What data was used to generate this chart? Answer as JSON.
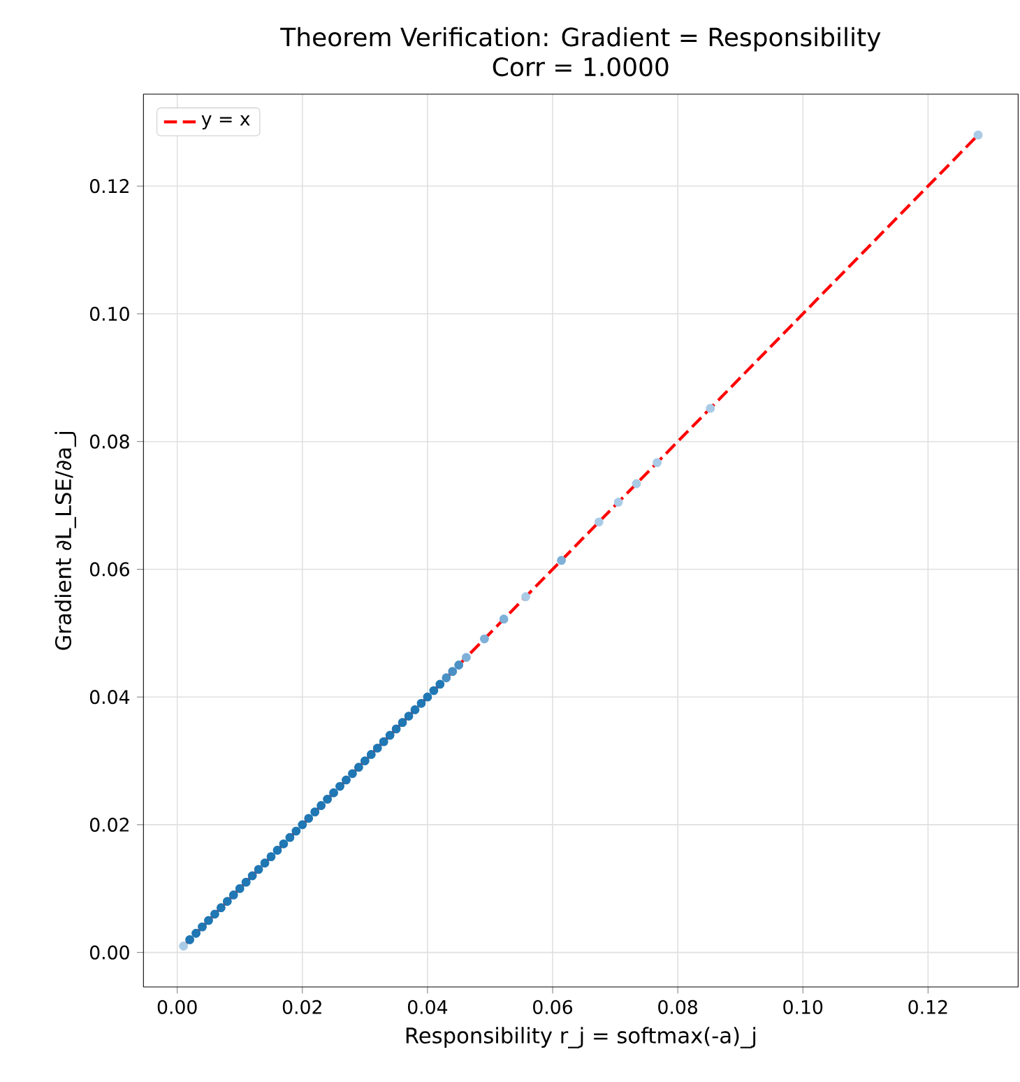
{
  "chart_data": {
    "type": "scatter",
    "title": "Theorem Verification: Gradient = Responsibility",
    "subtitle": "Corr = 1.0000",
    "xlabel": "Responsibility r_j = softmax(-a)_j",
    "ylabel": "Gradient ∂L_LSE/∂a_j",
    "xlim": [
      -0.0054,
      0.1344
    ],
    "ylim": [
      -0.0054,
      0.1344
    ],
    "xticks": [
      {
        "value": 0,
        "label": "0.00"
      },
      {
        "value": 0.02,
        "label": "0.02"
      },
      {
        "value": 0.04,
        "label": "0.04"
      },
      {
        "value": 0.06,
        "label": "0.06"
      },
      {
        "value": 0.08,
        "label": "0.08"
      },
      {
        "value": 0.1,
        "label": "0.10"
      },
      {
        "value": 0.12,
        "label": "0.12"
      }
    ],
    "yticks": [
      {
        "value": 0,
        "label": "0.00"
      },
      {
        "value": 0.02,
        "label": "0.02"
      },
      {
        "value": 0.04,
        "label": "0.04"
      },
      {
        "value": 0.06,
        "label": "0.06"
      },
      {
        "value": 0.08,
        "label": "0.08"
      },
      {
        "value": 0.1,
        "label": "0.10"
      },
      {
        "value": 0.12,
        "label": "0.12"
      }
    ],
    "grid": true,
    "legend": "top left",
    "series": [
      {
        "marker": "circle",
        "x": [
          0.001,
          0.002,
          0.003,
          0.004,
          0.005,
          0.006,
          0.007,
          0.008,
          0.009,
          0.01,
          0.011,
          0.012,
          0.013,
          0.014,
          0.015,
          0.016,
          0.017,
          0.018,
          0.019,
          0.02,
          0.021,
          0.022,
          0.023,
          0.024,
          0.025,
          0.026,
          0.027,
          0.028,
          0.029,
          0.03,
          0.031,
          0.032,
          0.033,
          0.034,
          0.035,
          0.036,
          0.037,
          0.038,
          0.039,
          0.04,
          0.041,
          0.042,
          0.043,
          0.044,
          0.045,
          0.0462,
          0.0491,
          0.0522,
          0.0557,
          0.0614,
          0.0674,
          0.0705,
          0.0734,
          0.0767,
          0.0852,
          0.128
        ],
        "values": [
          0.001,
          0.002,
          0.003,
          0.004,
          0.005,
          0.006,
          0.007,
          0.008,
          0.009,
          0.01,
          0.011,
          0.012,
          0.013,
          0.014,
          0.015,
          0.016,
          0.017,
          0.018,
          0.019,
          0.02,
          0.021,
          0.022,
          0.023,
          0.024,
          0.025,
          0.026,
          0.027,
          0.028,
          0.029,
          0.03,
          0.031,
          0.032,
          0.033,
          0.034,
          0.035,
          0.036,
          0.037,
          0.038,
          0.039,
          0.04,
          0.041,
          0.042,
          0.043,
          0.044,
          0.045,
          0.0462,
          0.0491,
          0.0522,
          0.0557,
          0.0614,
          0.0674,
          0.0705,
          0.0734,
          0.0767,
          0.0852,
          0.128
        ],
        "colors": [
          "#a9cbe6",
          "#1f77b4",
          "#1f77b4",
          "#1f77b4",
          "#1f77b4",
          "#1f77b4",
          "#1f77b4",
          "#1f77b4",
          "#1f77b4",
          "#1f77b4",
          "#1f77b4",
          "#1f77b4",
          "#1f77b4",
          "#1f77b4",
          "#1f77b4",
          "#1f77b4",
          "#1f77b4",
          "#1f77b4",
          "#1f77b4",
          "#1f77b4",
          "#1f77b4",
          "#1f77b4",
          "#1f77b4",
          "#1f77b4",
          "#1f77b4",
          "#1f77b4",
          "#1f77b4",
          "#1f77b4",
          "#1f77b4",
          "#1f77b4",
          "#1f77b4",
          "#1f77b4",
          "#1f77b4",
          "#1f77b4",
          "#1f77b4",
          "#1f77b4",
          "#1f77b4",
          "#1f77b4",
          "#1f77b4",
          "#1f77b4",
          "#1f77b4",
          "#1f77b4",
          "#4a90c4",
          "#4a90c4",
          "#4a90c4",
          "#7fb0d8",
          "#7fb0d8",
          "#7fb0d8",
          "#a9cbe6",
          "#7fb0d8",
          "#a9cbe6",
          "#a9cbe6",
          "#a9cbe6",
          "#a9cbe6",
          "#a9cbe6",
          "#a9cbe6"
        ]
      },
      {
        "type": "line",
        "name": "y = x",
        "color": "#ff0000",
        "line_style": "dashed",
        "x": [
          0.001,
          0.128
        ],
        "values": [
          0.001,
          0.128
        ]
      }
    ]
  }
}
